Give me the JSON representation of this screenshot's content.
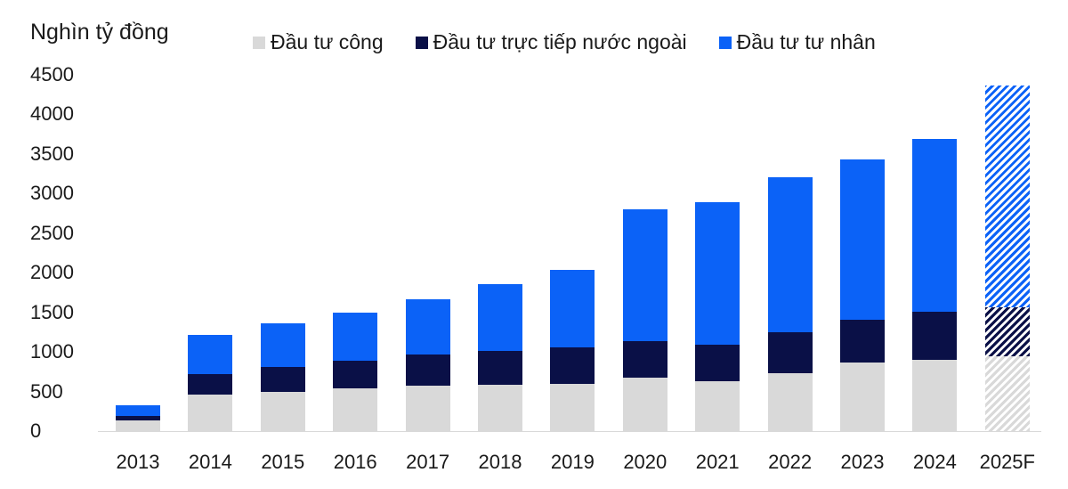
{
  "chart_data": {
    "type": "bar",
    "stacked": true,
    "title": "",
    "ylabel": "Nghìn tỷ đồng",
    "xlabel": "",
    "ylim": [
      0,
      4500
    ],
    "yticks": [
      0,
      500,
      1000,
      1500,
      2000,
      2500,
      3000,
      3500,
      4000,
      4500
    ],
    "grid": false,
    "legend_position": "top",
    "categories": [
      "2013",
      "2014",
      "2015",
      "2016",
      "2017",
      "2018",
      "2019",
      "2020",
      "2021",
      "2022",
      "2023",
      "2024",
      "2025F"
    ],
    "series": [
      {
        "name": "Đầu tư công",
        "color": "#d9d9d9",
        "values": [
          130,
          460,
          490,
          540,
          575,
          585,
          595,
          675,
          630,
          730,
          865,
          900,
          945
        ]
      },
      {
        "name": "Đầu tư trực tiếp nước ngoài",
        "color": "#0a1047",
        "values": [
          60,
          260,
          320,
          350,
          395,
          425,
          460,
          460,
          460,
          515,
          540,
          610,
          620
        ]
      },
      {
        "name": "Đầu tư tư nhân",
        "color": "#0b62f7",
        "values": [
          140,
          495,
          550,
          605,
          695,
          845,
          980,
          1665,
          1800,
          1960,
          2025,
          2180,
          2800
        ]
      }
    ],
    "annotations": [
      "2025F bar shown with diagonal hatching (forecast)"
    ]
  },
  "legend": [
    {
      "label": "Đầu tư công",
      "color": "#d9d9d9"
    },
    {
      "label": "Đầu tư trực tiếp nước ngoài",
      "color": "#0a1047"
    },
    {
      "label": "Đầu tư tư nhân",
      "color": "#0b62f7"
    }
  ],
  "unit_label": "Nghìn tỷ đồng"
}
